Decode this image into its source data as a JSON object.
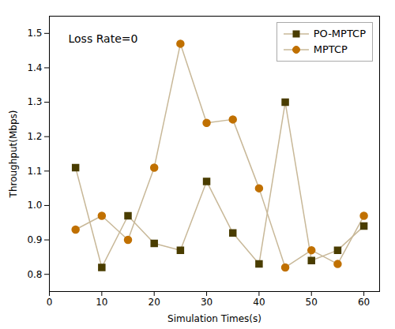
{
  "chart_data": {
    "type": "line",
    "xlabel": "Simulation Times(s)",
    "ylabel": "Throughput(Mbps)",
    "annotation": "Loss Rate=0",
    "x": [
      5,
      10,
      15,
      20,
      25,
      30,
      35,
      40,
      45,
      50,
      55,
      60
    ],
    "color": "#c8b898",
    "series": [
      {
        "name": "PO-MPTCP",
        "color": "#4a3d00",
        "marker": "square",
        "values": [
          1.11,
          0.82,
          0.97,
          0.89,
          0.87,
          1.07,
          0.92,
          0.83,
          1.3,
          0.84,
          0.87,
          0.94
        ]
      },
      {
        "name": "MPTCP",
        "color": "#c07000",
        "marker": "circle",
        "values": [
          0.93,
          0.97,
          0.9,
          1.11,
          1.47,
          1.24,
          1.25,
          1.05,
          0.82,
          0.87,
          0.83,
          0.97
        ]
      }
    ],
    "xlim": [
      0,
      63
    ],
    "ylim": [
      0.75,
      1.55
    ],
    "xticks": [
      0,
      10,
      20,
      30,
      40,
      50,
      60
    ],
    "yticks": [
      0.8,
      0.9,
      {
        "value": 1,
        "label": "1.0"
      },
      1.1,
      1.2,
      1.3,
      1.4,
      1.5
    ],
    "grid": false,
    "legend": "upper right"
  }
}
